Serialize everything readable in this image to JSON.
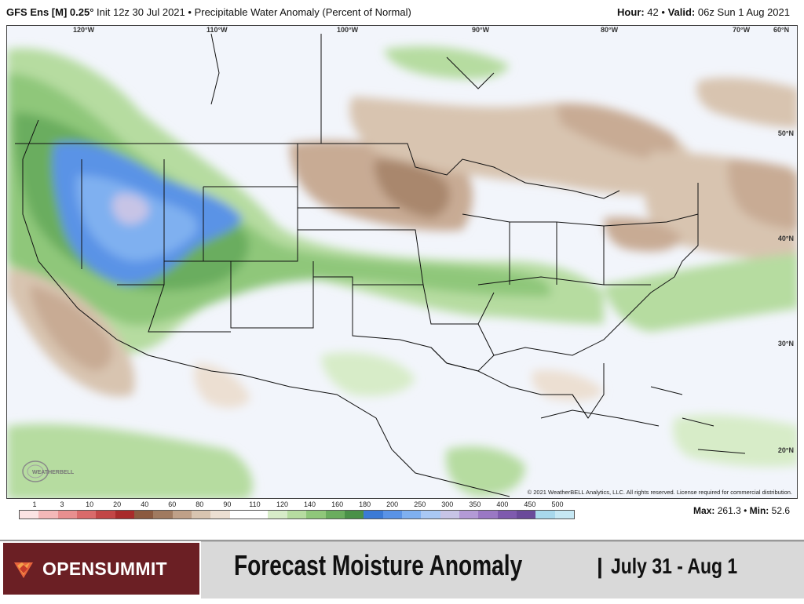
{
  "header": {
    "model": "GFS Ens [M] 0.25°",
    "init": "Init 12z 30 Jul 2021",
    "product": "Precipitable Water Anomaly (Percent of Normal)",
    "hour_label": "Hour:",
    "hour": "42",
    "valid_label": "Valid:",
    "valid": "06z Sun 1 Aug 2021"
  },
  "map": {
    "lon_labels": [
      "120°W",
      "110°W",
      "100°W",
      "90°W",
      "80°W",
      "70°W",
      "60°N"
    ],
    "lat_labels": [
      "50°N",
      "40°N",
      "30°N",
      "20°N"
    ],
    "copyright": "© 2021 WeatherBELL Analytics, LLC. All rights reserved. License required for commercial distribution.",
    "logo_text": "WEATHERBELL"
  },
  "legend": {
    "labels": [
      "1",
      "3",
      "10",
      "20",
      "40",
      "60",
      "80",
      "90",
      "110",
      "120",
      "140",
      "160",
      "180",
      "200",
      "250",
      "300",
      "350",
      "400",
      "450",
      "500"
    ],
    "colors": [
      "#fbe3e3",
      "#f4b8b8",
      "#e88f8f",
      "#d96a6a",
      "#c24646",
      "#a82b2b",
      "#8b5a40",
      "#a07a60",
      "#bfa088",
      "#d8c4b0",
      "#ecdfd2",
      "#ffffff",
      "#ffffff",
      "#d7ecc8",
      "#b6dca0",
      "#8fc77a",
      "#6aad5e",
      "#4a9148",
      "#3b7ad6",
      "#5a93e6",
      "#7fb0f0",
      "#a9c8f4",
      "#c7c4e6",
      "#b39ad6",
      "#9a78c4",
      "#7e5aae",
      "#6a4a9a",
      "#a8d8ec",
      "#c6e8f4"
    ]
  },
  "stats": {
    "max_label": "Max:",
    "max": "261.3",
    "min_label": "Min:",
    "min": "52.6"
  },
  "footer": {
    "brand": "OPENSUMMIT",
    "title": "Forecast Moisture Anomaly",
    "separator": "|",
    "date_range": "July 31 - Aug 1"
  }
}
